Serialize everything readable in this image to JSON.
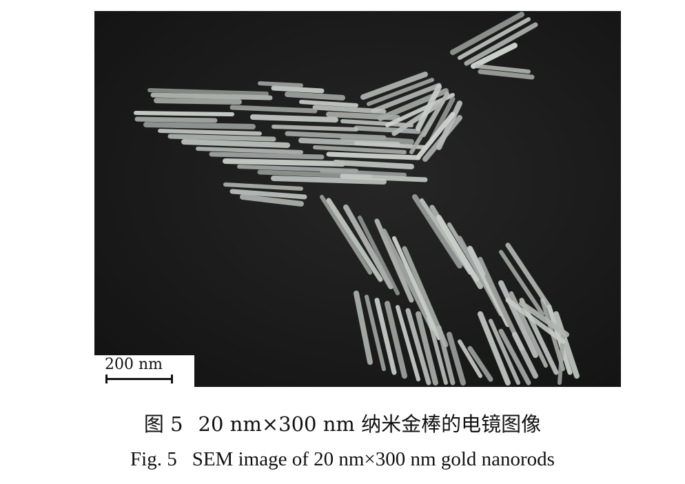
{
  "figure": {
    "scale_bar_label": "200 nm"
  },
  "caption_cn": {
    "number": "图 5",
    "text": "20 nm×300 nm 纳米金棒的电镜图像"
  },
  "caption_en": {
    "number": "Fig. 5",
    "text": "SEM image of 20 nm×300 nm gold nanorods"
  }
}
